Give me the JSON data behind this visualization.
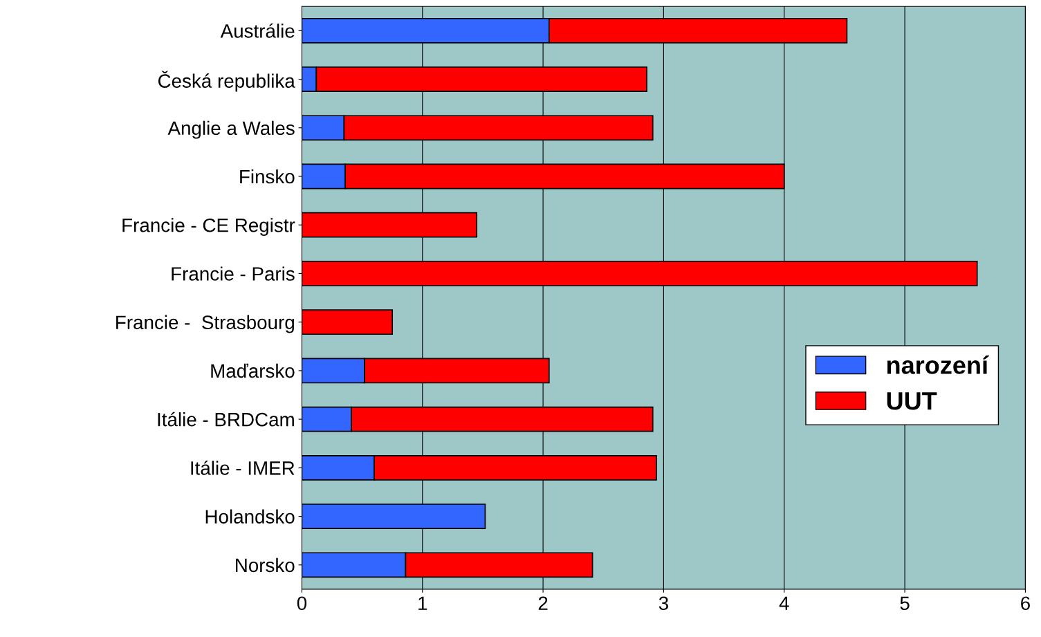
{
  "chart_data": {
    "type": "bar",
    "orientation": "horizontal",
    "stacked": true,
    "categories": [
      "Austrálie",
      "Česká republika",
      "Anglie a Wales",
      "Finsko",
      "Francie - CE Registr",
      "Francie - Paris",
      "Francie -  Strasbourg",
      "Maďarsko",
      "Itálie - BRDCam",
      "Itálie - IMER",
      "Holandsko",
      "Norsko"
    ],
    "series": [
      {
        "name": "narození",
        "color": "#3366ff",
        "values": [
          2.05,
          0.12,
          0.35,
          0.36,
          0,
          0,
          0,
          0.52,
          0.41,
          0.6,
          1.52,
          0.86
        ]
      },
      {
        "name": "UUT",
        "color": "#ff0000",
        "values": [
          2.47,
          2.74,
          2.56,
          3.64,
          1.45,
          5.6,
          0.75,
          1.53,
          2.5,
          2.34,
          0,
          1.55
        ]
      }
    ],
    "xlim": [
      0,
      6
    ],
    "xticks": [
      0,
      1,
      2,
      3,
      4,
      5,
      6
    ],
    "grid": "x",
    "legend": "right"
  }
}
